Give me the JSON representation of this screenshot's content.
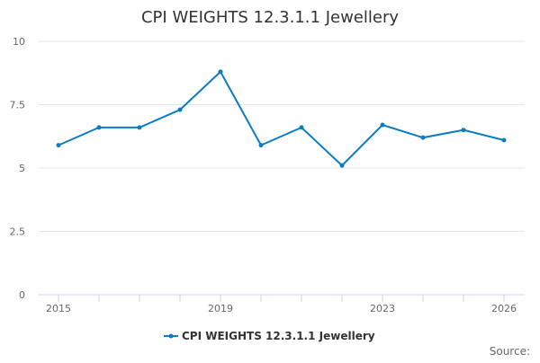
{
  "chart_data": {
    "type": "line",
    "title": "CPI WEIGHTS 12.3.1.1 Jewellery",
    "x": [
      2015,
      2016,
      2017,
      2018,
      2019,
      2020,
      2021,
      2022,
      2023,
      2024,
      2025,
      2026
    ],
    "series": [
      {
        "name": "CPI WEIGHTS 12.3.1.1 Jewellery",
        "values": [
          5.9,
          6.6,
          6.6,
          7.3,
          8.8,
          5.9,
          6.6,
          5.1,
          6.7,
          6.2,
          6.5,
          6.1
        ],
        "color": "#0a7dc2"
      }
    ],
    "x_tick_labels": [
      "2015",
      "2019",
      "2023",
      "2026"
    ],
    "y_ticks": [
      0,
      2.5,
      5,
      7.5,
      10
    ],
    "y_tick_labels": [
      "0",
      "2.5",
      "5",
      "7.5",
      "10"
    ],
    "ylim": [
      0,
      10
    ],
    "grid": true,
    "legend": "bottom",
    "xlabel": "",
    "ylabel": ""
  },
  "credits": "Source:"
}
